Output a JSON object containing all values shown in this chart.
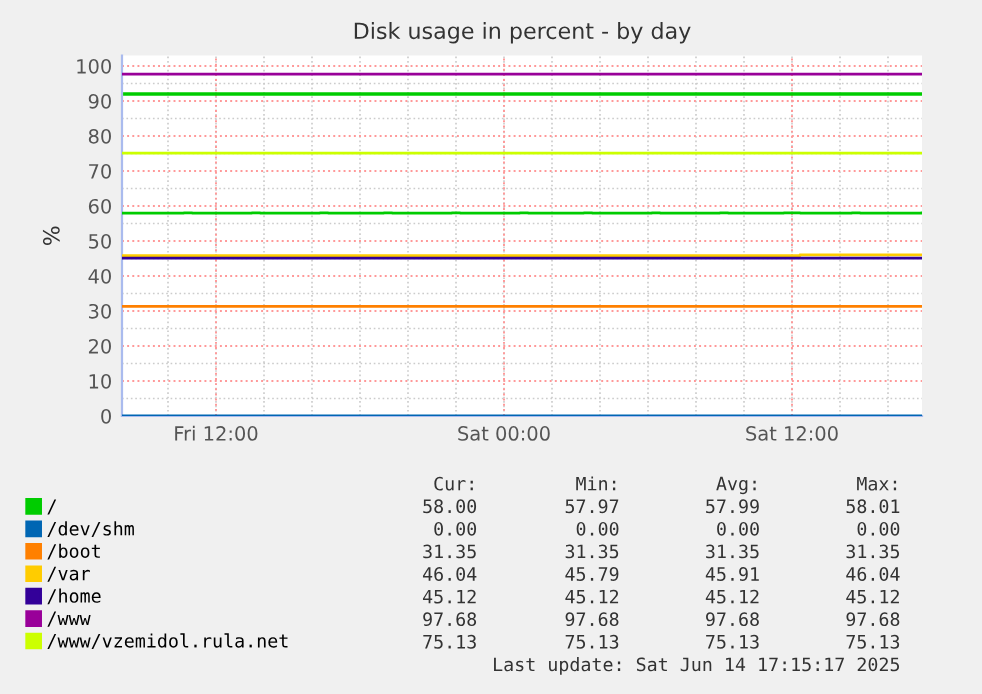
{
  "chart_data": {
    "type": "line",
    "title": "Disk usage in percent - by day",
    "ylabel": "%",
    "x": [
      "2025-06-13T08:05",
      "2025-06-13T10:40",
      "2025-06-13T11:00",
      "2025-06-13T13:30",
      "2025-06-13T13:50",
      "2025-06-13T16:20",
      "2025-06-13T16:40",
      "2025-06-13T19:00",
      "2025-06-13T19:20",
      "2025-06-13T21:50",
      "2025-06-13T22:10",
      "2025-06-14T00:40",
      "2025-06-14T01:00",
      "2025-06-14T03:20",
      "2025-06-14T03:40",
      "2025-06-14T06:10",
      "2025-06-14T06:30",
      "2025-06-14T09:00",
      "2025-06-14T09:20",
      "2025-06-14T11:40",
      "2025-06-14T12:20",
      "2025-06-14T14:30",
      "2025-06-14T14:50",
      "2025-06-14T17:25"
    ],
    "series": [
      {
        "name": "/",
        "color": "#00cc00",
        "values": [
          57.97,
          58.01,
          57.99,
          58.01,
          57.98,
          58.01,
          57.99,
          58.01,
          57.98,
          58.01,
          57.99,
          58.01,
          57.98,
          58.01,
          57.99,
          58.01,
          57.98,
          58.01,
          57.99,
          58.01,
          57.99,
          58.01,
          57.99,
          58.0
        ]
      },
      {
        "name": "/dev/shm",
        "color": "#0066b3",
        "values": [
          0,
          0,
          0,
          0,
          0,
          0,
          0,
          0,
          0,
          0,
          0,
          0,
          0,
          0,
          0,
          0,
          0,
          0,
          0,
          0,
          0,
          0,
          0,
          0
        ]
      },
      {
        "name": "/boot",
        "color": "#ff8000",
        "values": [
          31.35,
          31.35,
          31.35,
          31.35,
          31.35,
          31.35,
          31.35,
          31.35,
          31.35,
          31.35,
          31.35,
          31.35,
          31.35,
          31.35,
          31.35,
          31.35,
          31.35,
          31.35,
          31.35,
          31.35,
          31.35,
          31.35,
          31.35,
          31.35
        ]
      },
      {
        "name": "/var",
        "color": "#ffcc00",
        "values": [
          45.79,
          45.79,
          45.79,
          45.79,
          45.79,
          45.79,
          45.79,
          45.79,
          45.79,
          45.79,
          45.79,
          45.79,
          45.79,
          45.79,
          45.79,
          45.79,
          45.79,
          45.79,
          45.79,
          45.79,
          46.04,
          46.04,
          46.04,
          46.04
        ]
      },
      {
        "name": "/home",
        "color": "#330099",
        "values": [
          45.12,
          45.12,
          45.12,
          45.12,
          45.12,
          45.12,
          45.12,
          45.12,
          45.12,
          45.12,
          45.12,
          45.12,
          45.12,
          45.12,
          45.12,
          45.12,
          45.12,
          45.12,
          45.12,
          45.12,
          45.12,
          45.12,
          45.12,
          45.12
        ]
      },
      {
        "name": "/www",
        "color": "#990099",
        "values": [
          97.68,
          97.68,
          97.68,
          97.68,
          97.68,
          97.68,
          97.68,
          97.68,
          97.68,
          97.68,
          97.68,
          97.68,
          97.68,
          97.68,
          97.68,
          97.68,
          97.68,
          97.68,
          97.68,
          97.68,
          97.68,
          97.68,
          97.68,
          97.68
        ]
      },
      {
        "name": "/www/vzemidol.rula.net",
        "color": "#ccff00",
        "values": [
          75.13,
          75.13,
          75.13,
          75.13,
          75.13,
          75.13,
          75.13,
          75.13,
          75.13,
          75.13,
          75.13,
          75.13,
          75.13,
          75.13,
          75.13,
          75.13,
          75.13,
          75.13,
          75.13,
          75.13,
          75.13,
          75.13,
          75.13,
          75.13
        ]
      }
    ],
    "ref_lines": [
      {
        "axis": "y",
        "value": 92,
        "label": null,
        "color": "#00cc00"
      }
    ],
    "xlim": [
      "2025-06-13T08:05",
      "2025-06-14T17:25"
    ],
    "xticks": [
      {
        "value": "2025-06-13T12:00",
        "label": "Fri 12:00"
      },
      {
        "value": "2025-06-14T00:00",
        "label": "Sat 00:00"
      },
      {
        "value": "2025-06-14T12:00",
        "label": "Sat 12:00"
      }
    ],
    "ylim": [
      0,
      103
    ],
    "yticks": [
      0,
      10,
      20,
      30,
      40,
      50,
      60,
      70,
      80,
      90,
      100
    ],
    "grid": true,
    "legend": "bottom",
    "marker": "none",
    "line_style": "solid",
    "annotations": [
      "Cur:",
      "Min:",
      "Avg:",
      "Max:",
      "58.00",
      "57.97",
      "57.99",
      "58.01",
      "0.00",
      "0.00",
      "0.00",
      "0.00",
      "31.35",
      "31.35",
      "31.35",
      "31.35",
      "46.04",
      "45.79",
      "45.91",
      "46.04",
      "45.12",
      "45.12",
      "45.12",
      "45.12",
      "97.68",
      "97.68",
      "97.68",
      "97.68",
      "75.13",
      "75.13",
      "75.13",
      "75.13",
      "Last update: Sat Jun 14 17:15:17 2025"
    ]
  }
}
